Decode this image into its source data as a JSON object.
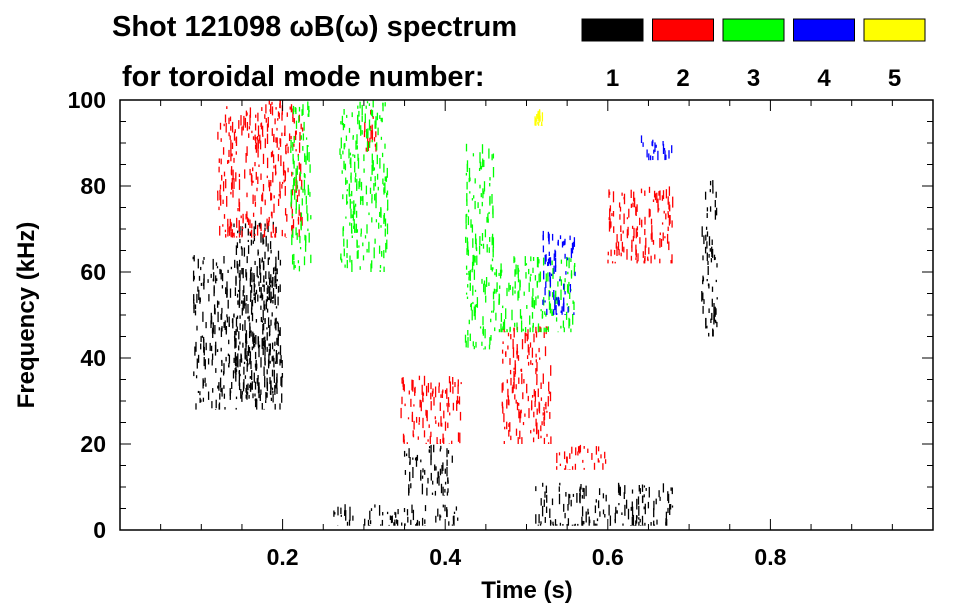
{
  "chart_data": {
    "type": "heatmap",
    "title_line1": "Shot 121098 ωB(ω) spectrum",
    "title_line2": "for toroidal mode number:",
    "xlabel": "Time (s)",
    "ylabel": "Frequency (kHz)",
    "xlim": [
      0.0,
      1.0
    ],
    "ylim": [
      0,
      100
    ],
    "x_ticks": [
      "0.2",
      "0.4",
      "0.6",
      "0.8"
    ],
    "x_tick_values": [
      0.2,
      0.4,
      0.6,
      0.8
    ],
    "y_ticks": [
      "0",
      "20",
      "40",
      "60",
      "80",
      "100"
    ],
    "y_tick_values": [
      0,
      20,
      40,
      60,
      80,
      100
    ],
    "legend": [
      {
        "label": "1",
        "color": "#000000"
      },
      {
        "label": "2",
        "color": "#ff0000"
      },
      {
        "label": "3",
        "color": "#00ff00"
      },
      {
        "label": "4",
        "color": "#0000ff"
      },
      {
        "label": "5",
        "color": "#ffff00"
      }
    ],
    "regions": [
      {
        "mode": 1,
        "t": [
          0.09,
          0.2
        ],
        "f": [
          28,
          64
        ]
      },
      {
        "mode": 1,
        "t": [
          0.14,
          0.195
        ],
        "f": [
          30,
          72
        ]
      },
      {
        "mode": 1,
        "t": [
          0.26,
          0.42
        ],
        "f": [
          1,
          6
        ]
      },
      {
        "mode": 1,
        "t": [
          0.35,
          0.41
        ],
        "f": [
          8,
          20
        ]
      },
      {
        "mode": 1,
        "t": [
          0.51,
          0.68
        ],
        "f": [
          1,
          11
        ]
      },
      {
        "mode": 1,
        "t": [
          0.715,
          0.735
        ],
        "f": [
          45,
          82
        ]
      },
      {
        "mode": 2,
        "t": [
          0.12,
          0.225
        ],
        "f": [
          68,
          100
        ]
      },
      {
        "mode": 2,
        "t": [
          0.3,
          0.315
        ],
        "f": [
          88,
          98
        ]
      },
      {
        "mode": 2,
        "t": [
          0.345,
          0.42
        ],
        "f": [
          20,
          36
        ]
      },
      {
        "mode": 2,
        "t": [
          0.47,
          0.53
        ],
        "f": [
          20,
          48
        ]
      },
      {
        "mode": 2,
        "t": [
          0.535,
          0.6
        ],
        "f": [
          14,
          20
        ]
      },
      {
        "mode": 2,
        "t": [
          0.6,
          0.68
        ],
        "f": [
          62,
          80
        ]
      },
      {
        "mode": 3,
        "t": [
          0.21,
          0.235
        ],
        "f": [
          60,
          100
        ]
      },
      {
        "mode": 3,
        "t": [
          0.425,
          0.46
        ],
        "f": [
          42,
          90
        ]
      },
      {
        "mode": 3,
        "t": [
          0.46,
          0.56
        ],
        "f": [
          46,
          64
        ]
      },
      {
        "mode": 3,
        "t": [
          0.27,
          0.33
        ],
        "f": [
          60,
          100
        ]
      },
      {
        "mode": 4,
        "t": [
          0.52,
          0.56
        ],
        "f": [
          50,
          70
        ]
      },
      {
        "mode": 4,
        "t": [
          0.64,
          0.68
        ],
        "f": [
          86,
          92
        ]
      },
      {
        "mode": 5,
        "t": [
          0.51,
          0.52
        ],
        "f": [
          94,
          98
        ]
      }
    ]
  }
}
